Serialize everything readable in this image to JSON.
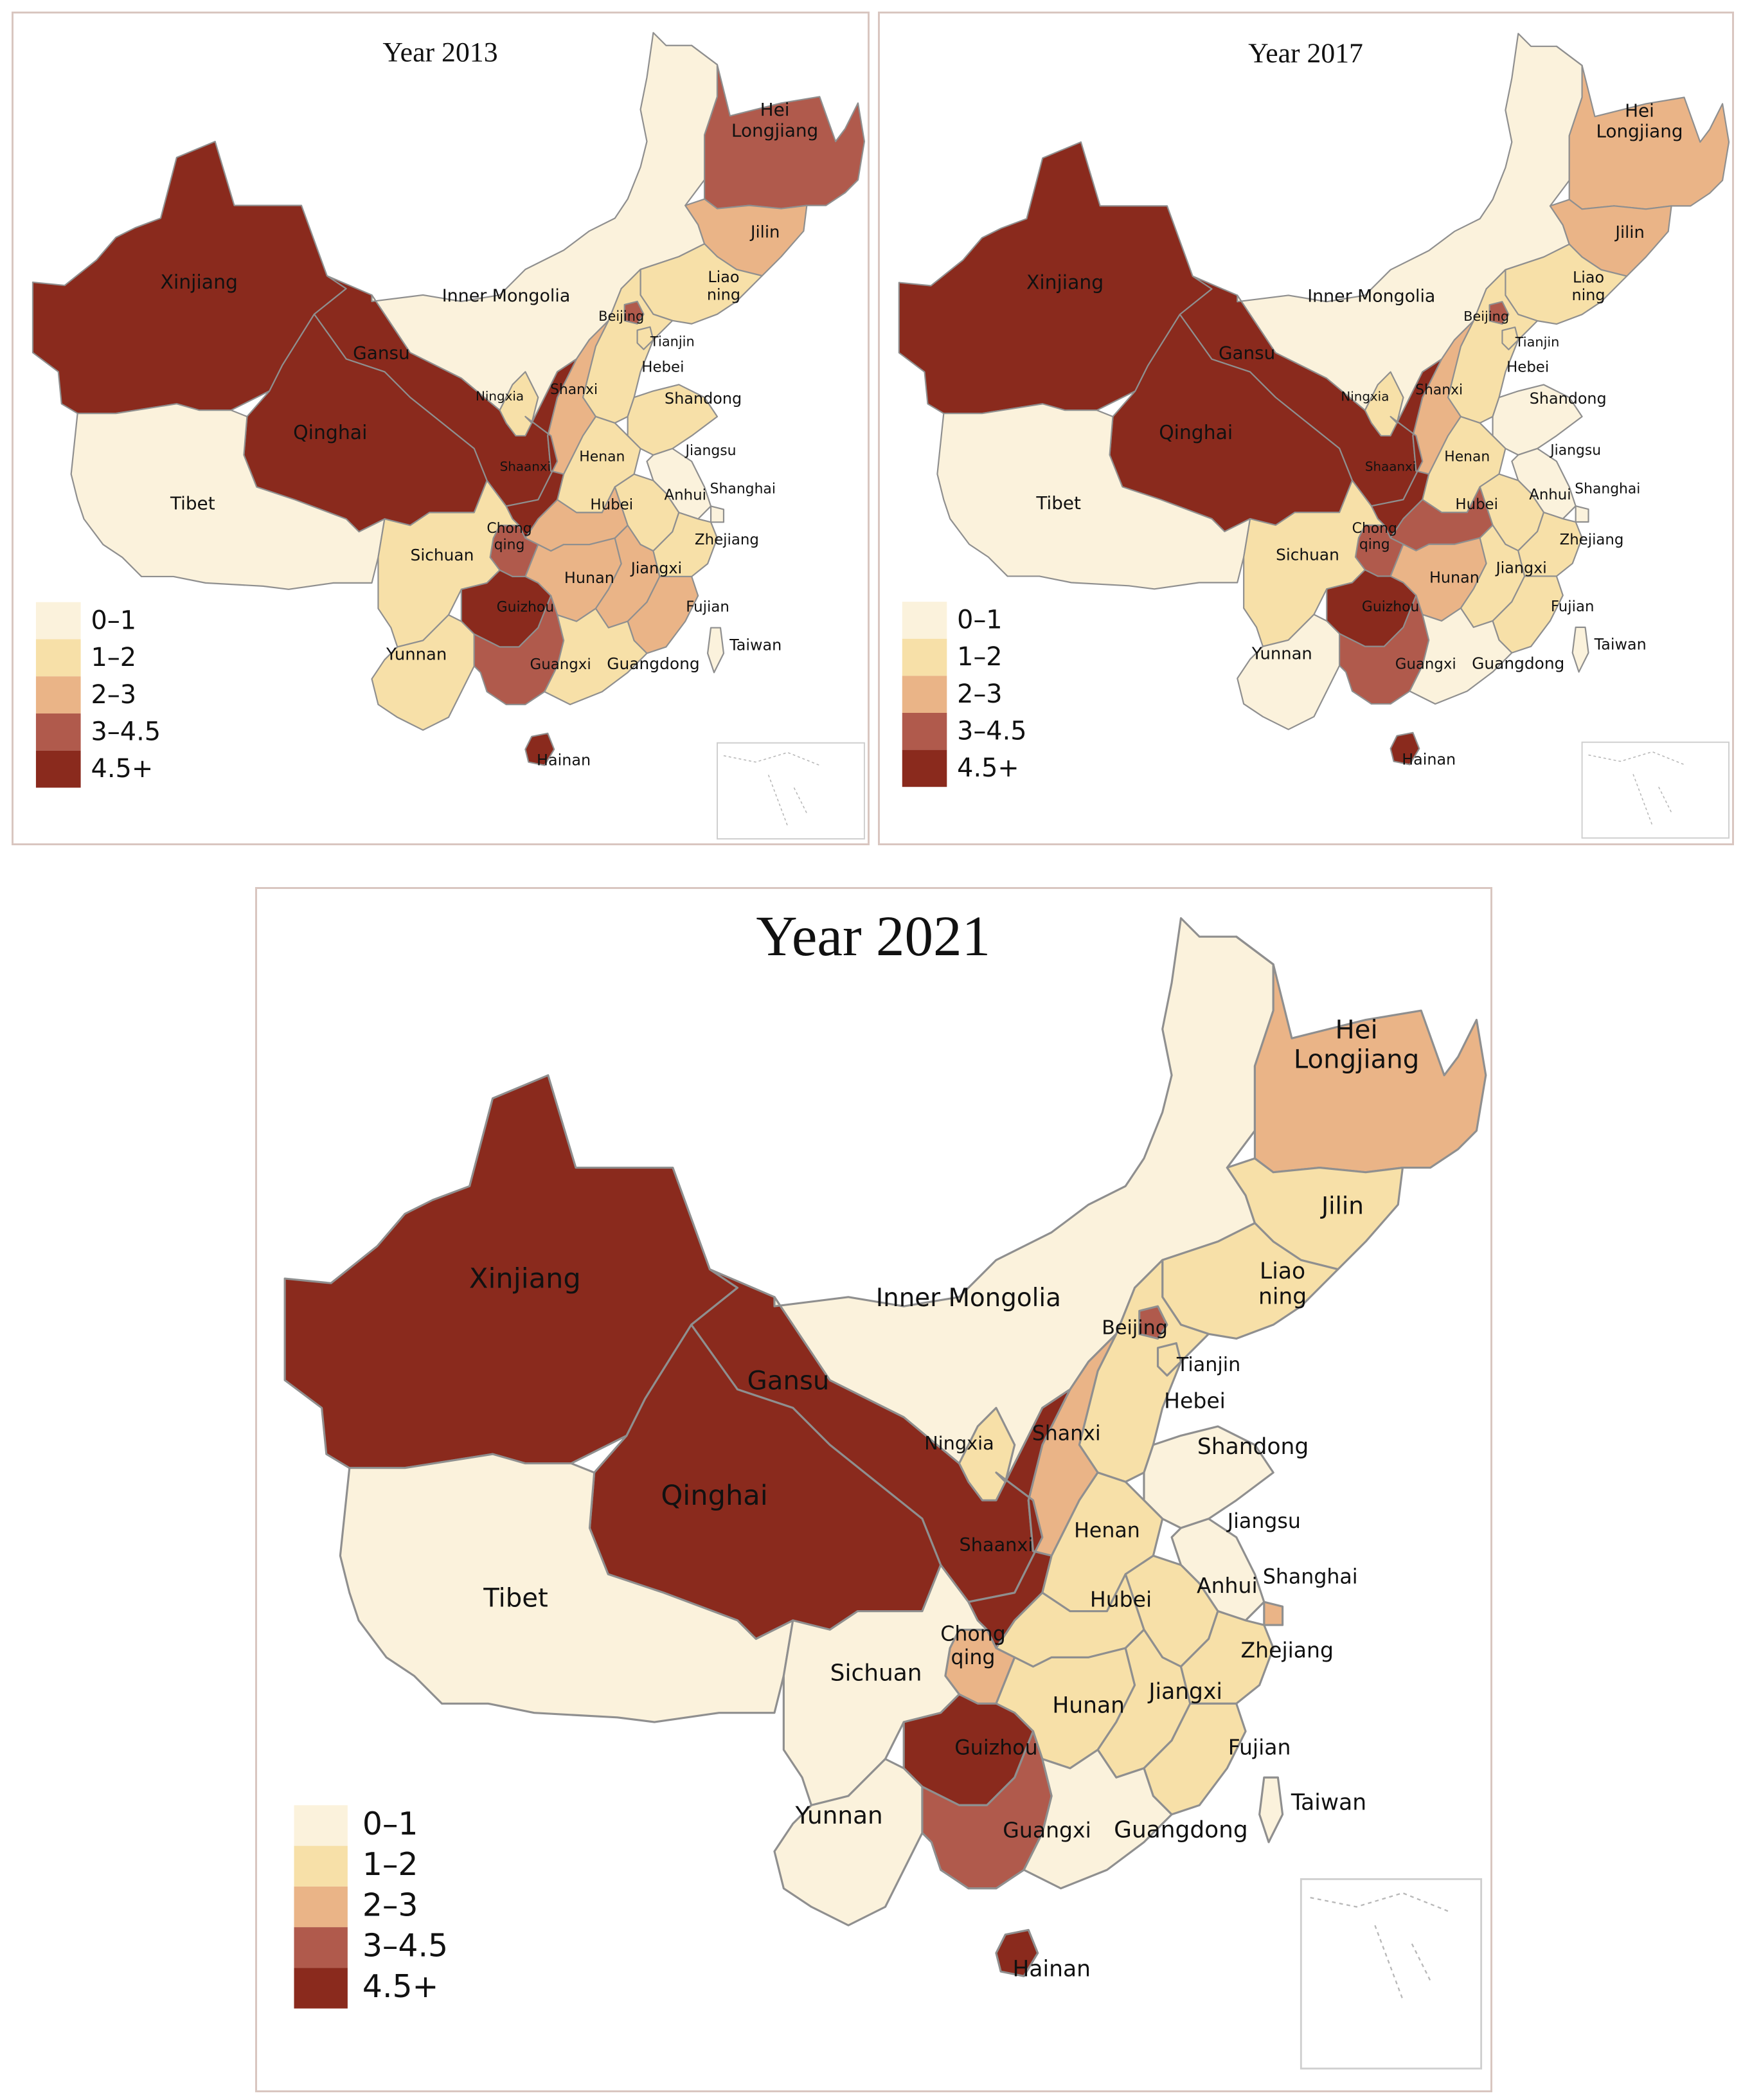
{
  "legend": {
    "classes": [
      {
        "label": "0–1",
        "color": "#fbf2dc"
      },
      {
        "label": "1–2",
        "color": "#f7e0a8"
      },
      {
        "label": "2–3",
        "color": "#eab487"
      },
      {
        "label": "3–4.5",
        "color": "#b05a4c"
      },
      {
        "label": "4.5+",
        "color": "#8a2a1d"
      }
    ]
  },
  "panels": [
    {
      "key": "2013",
      "title": "Year 2013",
      "classes": {
        "Xinjiang": 4,
        "Tibet": 0,
        "Qinghai": 4,
        "Gansu": 4,
        "Inner Mongolia": 0,
        "Hei Longjiang": 3,
        "Jilin": 2,
        "Liao ning": 1,
        "Beijing": 3,
        "Tianjin": 1,
        "Hebei": 1,
        "Shanxi": 2,
        "Ningxia": 1,
        "Shaanxi": 4,
        "Shandong": 1,
        "Henan": 1,
        "Jiangsu": 0,
        "Shanghai": 0,
        "Anhui": 1,
        "Hubei": 2,
        "Chong qing": 3,
        "Sichuan": 1,
        "Hunan": 2,
        "Jiangxi": 2,
        "Zhejiang": 1,
        "Fujian": 2,
        "Taiwan": 0,
        "Guizhou": 4,
        "Yunnan": 1,
        "Guangxi": 3,
        "Guangdong": 1,
        "Hainan": 4
      }
    },
    {
      "key": "2017",
      "title": "Year 2017",
      "classes": {
        "Xinjiang": 4,
        "Tibet": 0,
        "Qinghai": 4,
        "Gansu": 4,
        "Inner Mongolia": 0,
        "Hei Longjiang": 2,
        "Jilin": 2,
        "Liao ning": 1,
        "Beijing": 3,
        "Tianjin": 1,
        "Hebei": 1,
        "Shanxi": 2,
        "Ningxia": 1,
        "Shaanxi": 4,
        "Shandong": 0,
        "Henan": 1,
        "Jiangsu": 0,
        "Shanghai": 0,
        "Anhui": 1,
        "Hubei": 3,
        "Chong qing": 3,
        "Sichuan": 1,
        "Hunan": 2,
        "Jiangxi": 1,
        "Zhejiang": 1,
        "Fujian": 1,
        "Taiwan": 0,
        "Guizhou": 4,
        "Yunnan": 0,
        "Guangxi": 3,
        "Guangdong": 0,
        "Hainan": 4
      }
    },
    {
      "key": "2021",
      "title": "Year 2021",
      "classes": {
        "Xinjiang": 4,
        "Tibet": 0,
        "Qinghai": 4,
        "Gansu": 4,
        "Inner Mongolia": 0,
        "Hei Longjiang": 2,
        "Jilin": 1,
        "Liao ning": 1,
        "Beijing": 3,
        "Tianjin": 1,
        "Hebei": 1,
        "Shanxi": 2,
        "Ningxia": 1,
        "Shaanxi": 4,
        "Shandong": 0,
        "Henan": 1,
        "Jiangsu": 0,
        "Shanghai": 2,
        "Anhui": 1,
        "Hubei": 1,
        "Chong qing": 2,
        "Sichuan": 0,
        "Hunan": 1,
        "Jiangxi": 1,
        "Zhejiang": 1,
        "Fujian": 1,
        "Taiwan": 0,
        "Guizhou": 4,
        "Yunnan": 0,
        "Guangxi": 3,
        "Guangdong": 0,
        "Hainan": 4
      }
    }
  ],
  "province_labels": {
    "Xinjiang": [
      "Xinjiang"
    ],
    "Tibet": [
      "Tibet"
    ],
    "Qinghai": [
      "Qinghai"
    ],
    "Gansu": [
      "Gansu"
    ],
    "Inner Mongolia": [
      "Inner Mongolia"
    ],
    "Hei Longjiang": [
      "Hei",
      "Longjiang"
    ],
    "Jilin": [
      "Jilin"
    ],
    "Liao ning": [
      "Liao",
      "ning"
    ],
    "Beijing": [
      "Beijing"
    ],
    "Tianjin": [
      "Tianjin"
    ],
    "Hebei": [
      "Hebei"
    ],
    "Shanxi": [
      "Shanxi"
    ],
    "Ningxia": [
      "Ningxia"
    ],
    "Shaanxi": [
      "Shaanxi"
    ],
    "Shandong": [
      "Shandong"
    ],
    "Henan": [
      "Henan"
    ],
    "Jiangsu": [
      "Jiangsu"
    ],
    "Shanghai": [
      "Shanghai"
    ],
    "Anhui": [
      "Anhui"
    ],
    "Hubei": [
      "Hubei"
    ],
    "Chong qing": [
      "Chong",
      "qing"
    ],
    "Sichuan": [
      "Sichuan"
    ],
    "Hunan": [
      "Hunan"
    ],
    "Jiangxi": [
      "Jiangxi"
    ],
    "Zhejiang": [
      "Zhejiang"
    ],
    "Fujian": [
      "Fujian"
    ],
    "Taiwan": [
      "Taiwan"
    ],
    "Guizhou": [
      "Guizhou"
    ],
    "Yunnan": [
      "Yunnan"
    ],
    "Guangxi": [
      "Guangxi"
    ],
    "Guangdong": [
      "Guangdong"
    ],
    "Hainan": [
      "Hainan"
    ]
  }
}
